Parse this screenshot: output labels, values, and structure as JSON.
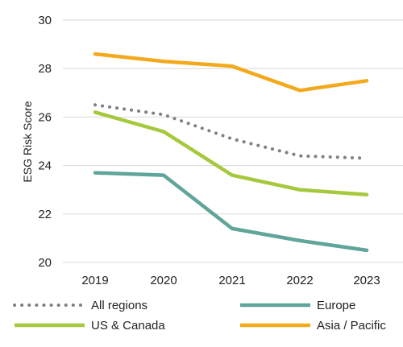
{
  "chart_data": {
    "type": "line",
    "title": "",
    "xlabel": "",
    "ylabel": "ESG Risk Score",
    "categories": [
      "2019",
      "2020",
      "2021",
      "2022",
      "2023"
    ],
    "ylim": [
      20,
      30
    ],
    "yticks": [
      20,
      22,
      24,
      26,
      28,
      30
    ],
    "grid": "horizontal",
    "legend_position": "bottom",
    "series": [
      {
        "name": "All regions",
        "values": [
          26.5,
          26.1,
          25.1,
          24.4,
          24.3
        ],
        "color": "#808080",
        "style": "dotted"
      },
      {
        "name": "Europe",
        "values": [
          23.7,
          23.6,
          21.4,
          20.9,
          20.5
        ],
        "color": "#5fa59a",
        "style": "solid"
      },
      {
        "name": "US & Canada",
        "values": [
          26.2,
          25.4,
          23.6,
          23.0,
          22.8
        ],
        "color": "#a6c83c",
        "style": "solid"
      },
      {
        "name": "Asia / Pacific",
        "values": [
          28.6,
          28.3,
          28.1,
          27.1,
          27.5
        ],
        "color": "#f4a91c",
        "style": "solid"
      }
    ]
  }
}
